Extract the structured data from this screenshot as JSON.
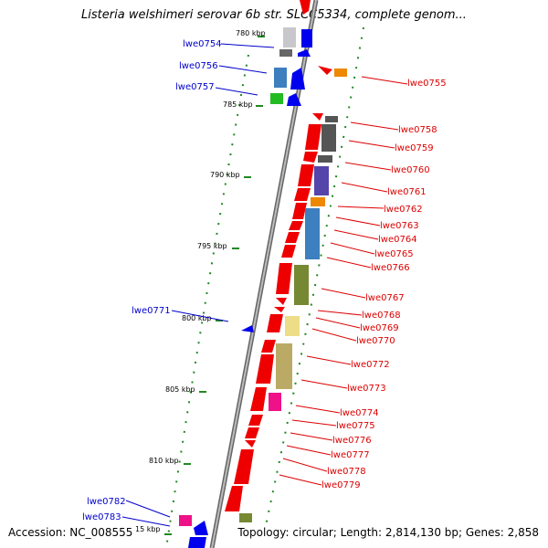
{
  "title": "Listeria welshimeri serovar 6b str. SLCC5334, complete genom...",
  "footer": {
    "accession": "Accession: NC_008555",
    "topology": "Topology: circular; Length: 2,814,130 bp; Genes: 2,858"
  },
  "ticks": [
    {
      "label": "780 kbp"
    },
    {
      "label": "785 kbp"
    },
    {
      "label": "790 kbp"
    },
    {
      "label": "795 kbp"
    },
    {
      "label": "800 kbp"
    },
    {
      "label": "805 kbp"
    },
    {
      "label": "810 kbp"
    },
    {
      "label": "15 kbp"
    }
  ],
  "genes_left": [
    "lwe0754",
    "lwe0756",
    "lwe0757",
    "lwe0771",
    "lwe0782",
    "lwe0783"
  ],
  "genes_right": [
    "lwe0755",
    "lwe0758",
    "lwe0759",
    "lwe0760",
    "lwe0761",
    "lwe0762",
    "lwe0763",
    "lwe0764",
    "lwe0765",
    "lwe0766",
    "lwe0767",
    "lwe0768",
    "lwe0769",
    "lwe0770",
    "lwe0772",
    "lwe0773",
    "lwe0774",
    "lwe0775",
    "lwe0776",
    "lwe0777",
    "lwe0778",
    "lwe0779"
  ],
  "colors": {
    "backbone": "#888888",
    "gene_red": "#ee0000",
    "label_red": "#dd0000",
    "label_blue": "#0000cc",
    "dots": "#228822"
  }
}
